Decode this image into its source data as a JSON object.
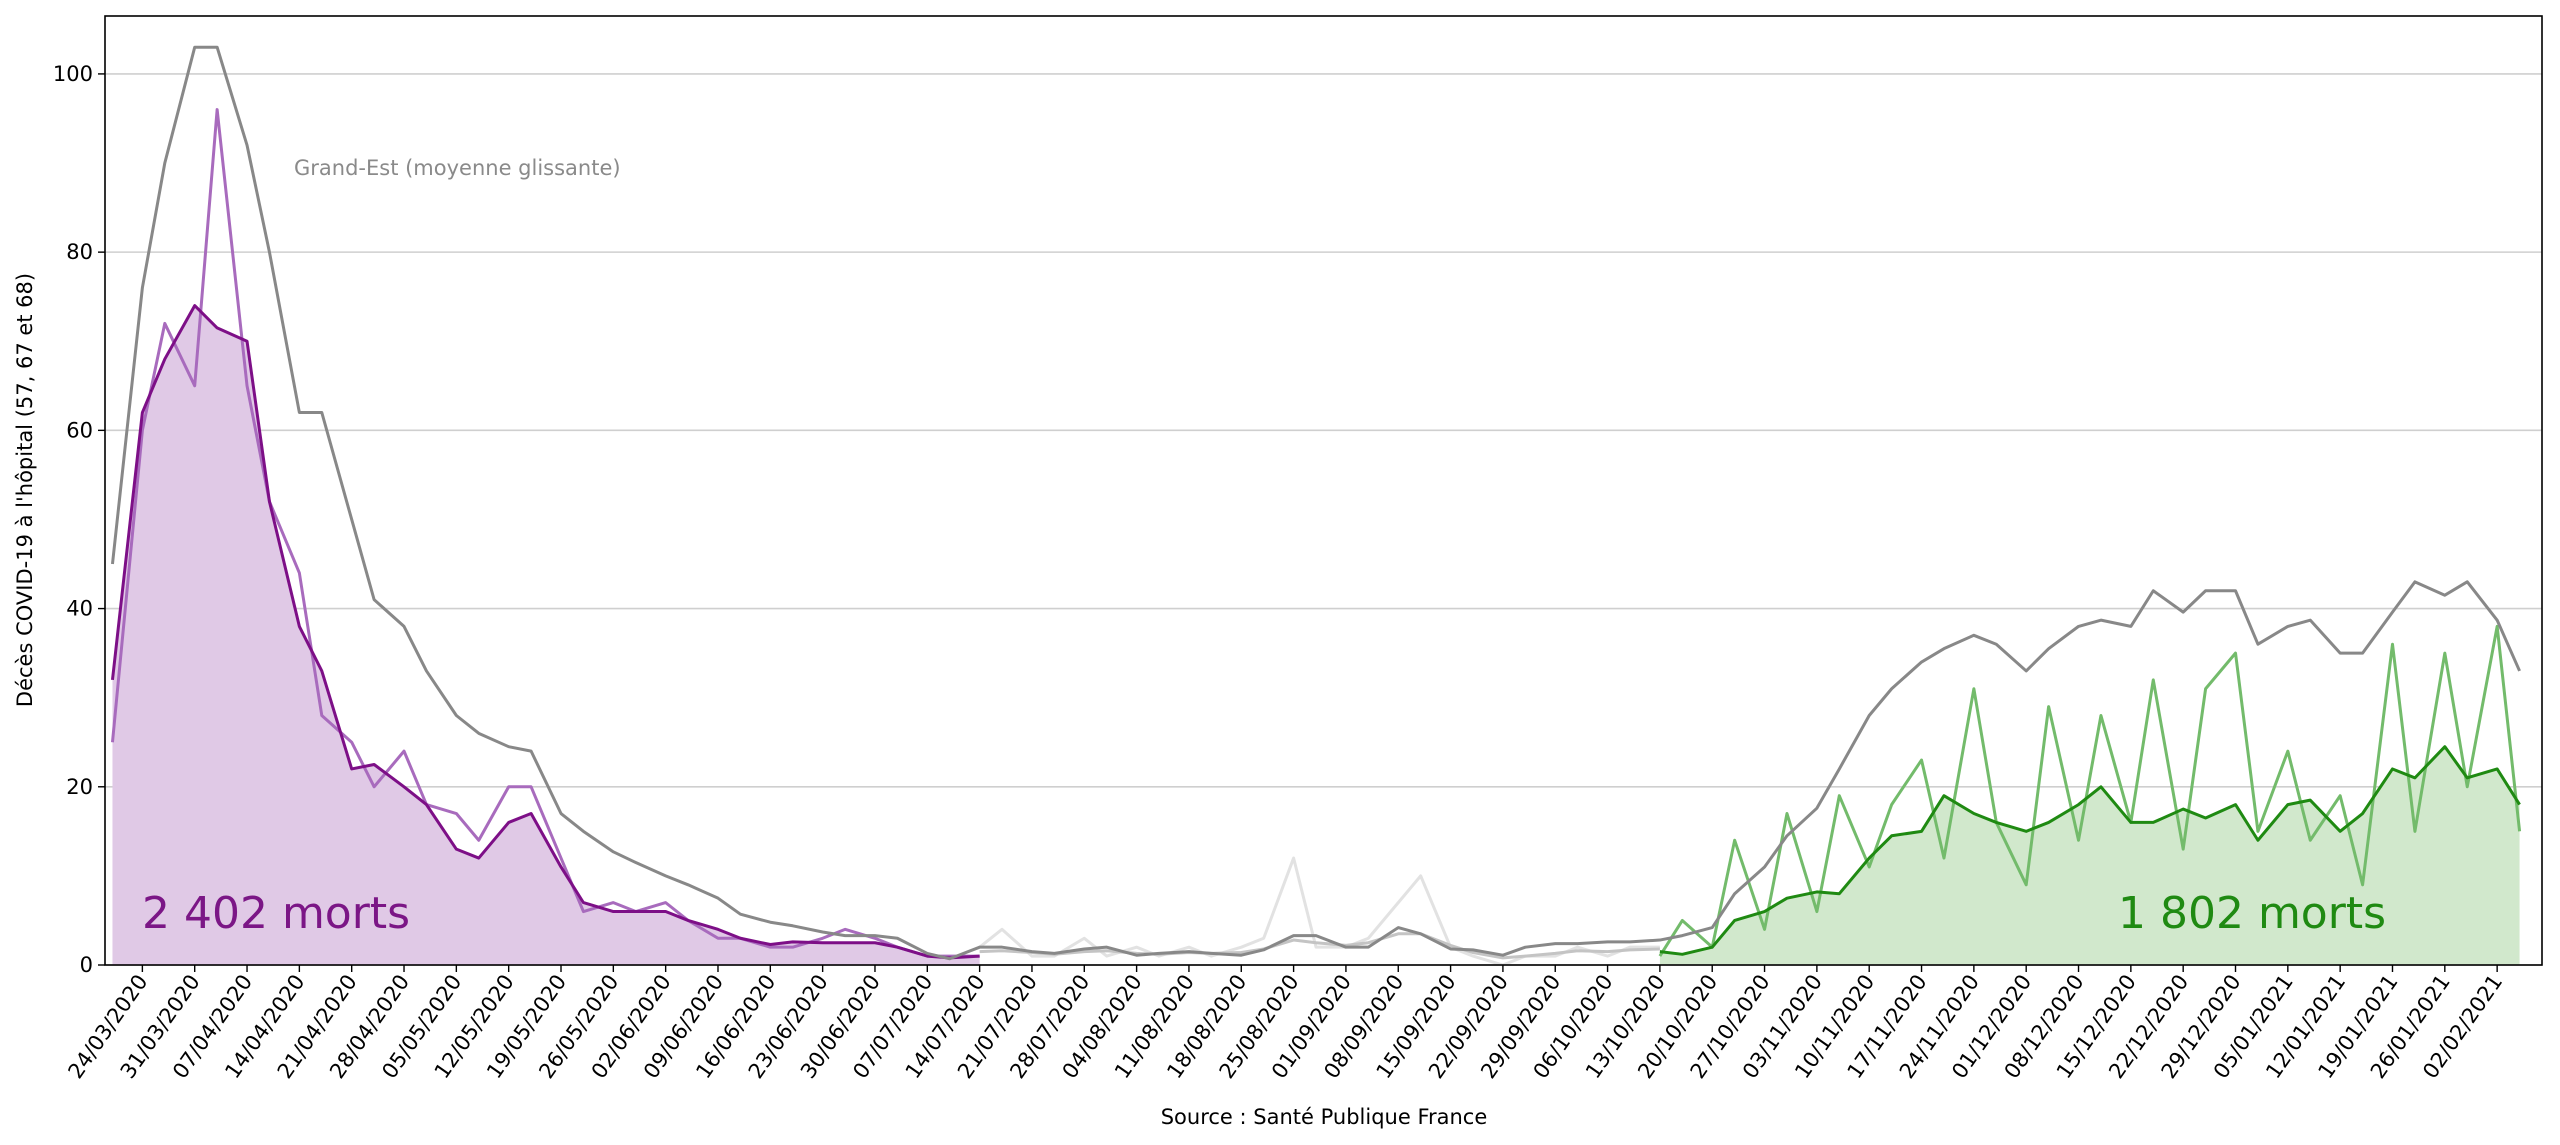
{
  "chart_data": {
    "type": "line",
    "y_label": "Décès COVID-19 à l'hôpital (57, 67 et 68)",
    "x_label": "Source : Santé Publique France",
    "annotations": [
      "Grand-Est (moyenne glissante)",
      "2 402 morts",
      "1 802 morts"
    ],
    "grid": true,
    "xlim": [
      "19/03/2020",
      "08/02/2021"
    ],
    "ylim": [
      0,
      106.5
    ],
    "yticks": [
      0,
      20,
      40,
      60,
      80,
      100
    ],
    "xticks": [
      "24/03/2020",
      "31/03/2020",
      "07/04/2020",
      "14/04/2020",
      "21/04/2020",
      "28/04/2020",
      "05/05/2020",
      "12/05/2020",
      "19/05/2020",
      "26/05/2020",
      "02/06/2020",
      "09/06/2020",
      "16/06/2020",
      "23/06/2020",
      "30/06/2020",
      "07/07/2020",
      "14/07/2020",
      "21/07/2020",
      "28/07/2020",
      "04/08/2020",
      "11/08/2020",
      "18/08/2020",
      "25/08/2020",
      "01/09/2020",
      "08/09/2020",
      "15/09/2020",
      "22/09/2020",
      "29/09/2020",
      "06/10/2020",
      "13/10/2020",
      "20/10/2020",
      "27/10/2020",
      "03/11/2020",
      "10/11/2020",
      "17/11/2020",
      "24/11/2020",
      "01/12/2020",
      "08/12/2020",
      "15/12/2020",
      "22/12/2020",
      "29/12/2020",
      "05/01/2021",
      "12/01/2021",
      "19/01/2021",
      "26/01/2021",
      "02/02/2021"
    ],
    "x": [
      "20/03/2020",
      "24/03/2020",
      "27/03/2020",
      "31/03/2020",
      "03/04/2020",
      "07/04/2020",
      "10/04/2020",
      "14/04/2020",
      "17/04/2020",
      "21/04/2020",
      "24/04/2020",
      "28/04/2020",
      "01/05/2020",
      "05/05/2020",
      "08/05/2020",
      "12/05/2020",
      "15/05/2020",
      "19/05/2020",
      "22/05/2020",
      "26/05/2020",
      "29/05/2020",
      "02/06/2020",
      "05/06/2020",
      "09/06/2020",
      "12/06/2020",
      "16/06/2020",
      "19/06/2020",
      "23/06/2020",
      "26/06/2020",
      "30/06/2020",
      "03/07/2020",
      "07/07/2020",
      "10/07/2020",
      "14/07/2020",
      "17/07/2020",
      "21/07/2020",
      "24/07/2020",
      "28/07/2020",
      "31/07/2020",
      "04/08/2020",
      "07/08/2020",
      "11/08/2020",
      "14/08/2020",
      "18/08/2020",
      "21/08/2020",
      "25/08/2020",
      "28/08/2020",
      "01/09/2020",
      "04/09/2020",
      "08/09/2020",
      "11/09/2020",
      "15/09/2020",
      "18/09/2020",
      "22/09/2020",
      "25/09/2020",
      "29/09/2020",
      "02/10/2020",
      "06/10/2020",
      "09/10/2020",
      "13/10/2020",
      "16/10/2020",
      "20/10/2020",
      "23/10/2020",
      "27/10/2020",
      "30/10/2020",
      "03/11/2020",
      "06/11/2020",
      "10/11/2020",
      "13/11/2020",
      "17/11/2020",
      "20/11/2020",
      "24/11/2020",
      "27/11/2020",
      "01/12/2020",
      "04/12/2020",
      "08/12/2020",
      "11/12/2020",
      "15/12/2020",
      "18/12/2020",
      "22/12/2020",
      "25/12/2020",
      "29/12/2020",
      "01/01/2021",
      "05/01/2021",
      "08/01/2021",
      "12/01/2021",
      "15/01/2021",
      "19/01/2021",
      "22/01/2021",
      "26/01/2021",
      "29/01/2021",
      "02/02/2021",
      "05/02/2021"
    ],
    "series": [
      {
        "color": "#a86bbd",
        "fill": "#e0c9e6",
        "values": [
          32,
          62,
          68,
          74,
          71.5,
          70,
          52,
          38,
          33,
          22,
          22.5,
          20,
          18,
          13,
          12,
          16,
          17,
          11,
          7,
          6,
          6,
          6,
          5,
          4,
          3,
          2.3,
          2.6,
          2.5,
          2.5,
          2.5,
          2,
          1,
          0.8,
          1,
          null,
          null,
          null,
          null,
          null,
          null,
          null,
          null,
          null,
          null,
          null,
          null,
          null,
          null,
          null,
          null,
          null,
          null,
          null,
          null,
          null,
          null,
          null,
          null,
          null,
          null,
          null,
          null,
          null,
          null,
          null,
          null,
          null,
          null,
          null,
          null,
          null,
          null,
          null,
          null,
          null,
          null,
          null,
          null,
          null,
          null,
          null,
          null,
          null,
          null,
          null,
          null,
          null,
          null,
          null,
          null,
          null,
          null,
          null
        ]
      },
      {
        "color": "#a86bbd",
        "values": [
          25,
          60,
          72,
          65,
          96,
          65,
          52,
          44,
          28,
          25,
          20,
          24,
          18,
          17,
          14,
          20,
          20,
          12,
          6,
          7,
          6,
          7,
          5,
          3,
          3,
          2,
          2,
          3,
          4,
          3,
          2,
          1,
          1,
          1,
          null,
          null,
          null,
          null,
          null,
          null,
          null,
          null,
          null,
          null,
          null,
          null,
          null,
          null,
          null,
          null,
          null,
          null,
          null,
          null,
          null,
          null,
          null,
          null,
          null,
          null,
          null,
          null,
          null,
          null,
          null,
          null,
          null,
          null,
          null,
          null,
          null,
          null,
          null,
          null,
          null,
          null,
          null,
          null,
          null,
          null,
          null,
          null,
          null,
          null,
          null,
          null,
          null,
          null,
          null,
          null,
          null,
          null,
          null
        ]
      },
      {
        "color": "#7d0f87",
        "values": [
          32,
          62,
          68,
          74,
          71.5,
          70,
          52,
          38,
          33,
          22,
          22.5,
          20,
          18,
          13,
          12,
          16,
          17,
          11,
          7,
          6,
          6,
          6,
          5,
          4,
          3,
          2.3,
          2.6,
          2.5,
          2.5,
          2.5,
          2,
          1,
          0.8,
          1,
          null,
          null,
          null,
          null,
          null,
          null,
          null,
          null,
          null,
          null,
          null,
          null,
          null,
          null,
          null,
          null,
          null,
          null,
          null,
          null,
          null,
          null,
          null,
          null,
          null,
          null,
          null,
          null,
          null,
          null,
          null,
          null,
          null,
          null,
          null,
          null,
          null,
          null,
          null,
          null,
          null,
          null,
          null,
          null,
          null,
          null,
          null,
          null,
          null,
          null,
          null,
          null,
          null,
          null,
          null,
          null,
          null,
          null,
          null
        ]
      },
      {
        "color": "#e2e2e2",
        "values": [
          null,
          null,
          null,
          null,
          null,
          null,
          null,
          null,
          null,
          null,
          null,
          null,
          null,
          null,
          null,
          null,
          null,
          null,
          null,
          null,
          null,
          null,
          null,
          null,
          null,
          null,
          null,
          null,
          null,
          null,
          null,
          null,
          null,
          2,
          4,
          1,
          1,
          3,
          1,
          2,
          1,
          2,
          1,
          2,
          3,
          12,
          2,
          2,
          3,
          7,
          10,
          2,
          1,
          0,
          1,
          1,
          2,
          1,
          2,
          2,
          null,
          null,
          null,
          null,
          null,
          null,
          null,
          null,
          null,
          null,
          null,
          null,
          null,
          null,
          null,
          null,
          null,
          null,
          null,
          null,
          null,
          null,
          null,
          null,
          null,
          null,
          null,
          null,
          null,
          null,
          null,
          null,
          null
        ]
      },
      {
        "color": "#c4c4c4",
        "values": [
          null,
          null,
          null,
          null,
          null,
          null,
          null,
          null,
          null,
          null,
          null,
          null,
          null,
          null,
          null,
          null,
          null,
          null,
          null,
          null,
          null,
          null,
          null,
          null,
          null,
          null,
          null,
          null,
          null,
          null,
          null,
          null,
          null,
          1.5,
          1.6,
          1.4,
          1.2,
          1.5,
          1.6,
          1.3,
          1.2,
          1.4,
          1.3,
          1.4,
          1.8,
          2.8,
          2.5,
          2.2,
          2.5,
          3.5,
          3.5,
          2.2,
          1.4,
          0.8,
          1.0,
          1.3,
          1.6,
          1.5,
          1.7,
          1.8,
          null,
          null,
          null,
          null,
          null,
          null,
          null,
          null,
          null,
          null,
          null,
          null,
          null,
          null,
          null,
          null,
          null,
          null,
          null,
          null,
          null,
          null,
          null,
          null,
          null,
          null,
          null,
          null,
          null,
          null,
          null,
          null,
          null
        ]
      },
      {
        "color": "#73bb6b",
        "fill": "#d1e8cc",
        "values": [
          null,
          null,
          null,
          null,
          null,
          null,
          null,
          null,
          null,
          null,
          null,
          null,
          null,
          null,
          null,
          null,
          null,
          null,
          null,
          null,
          null,
          null,
          null,
          null,
          null,
          null,
          null,
          null,
          null,
          null,
          null,
          null,
          null,
          null,
          null,
          null,
          null,
          null,
          null,
          null,
          null,
          null,
          null,
          null,
          null,
          null,
          null,
          null,
          null,
          null,
          null,
          null,
          null,
          null,
          null,
          null,
          null,
          null,
          null,
          1.5,
          1.2,
          2,
          5,
          6,
          7.5,
          8.2,
          8,
          12,
          14.5,
          15,
          19,
          17,
          16,
          15,
          16,
          18,
          20,
          16,
          16,
          17.5,
          16.5,
          18,
          14,
          18,
          18.5,
          15,
          17,
          22,
          21,
          24.5,
          21,
          22,
          18
        ]
      },
      {
        "color": "#73bb6b",
        "values": [
          null,
          null,
          null,
          null,
          null,
          null,
          null,
          null,
          null,
          null,
          null,
          null,
          null,
          null,
          null,
          null,
          null,
          null,
          null,
          null,
          null,
          null,
          null,
          null,
          null,
          null,
          null,
          null,
          null,
          null,
          null,
          null,
          null,
          null,
          null,
          null,
          null,
          null,
          null,
          null,
          null,
          null,
          null,
          null,
          null,
          null,
          null,
          null,
          null,
          null,
          null,
          null,
          null,
          null,
          null,
          null,
          null,
          null,
          null,
          1,
          5,
          2,
          14,
          4,
          17,
          6,
          19,
          11,
          18,
          23,
          12,
          31,
          16,
          9,
          29,
          14,
          28,
          16,
          32,
          13,
          31,
          35,
          15,
          24,
          14,
          19,
          9,
          36,
          15,
          35,
          20,
          38,
          15
        ]
      },
      {
        "color": "#1f8a12",
        "values": [
          null,
          null,
          null,
          null,
          null,
          null,
          null,
          null,
          null,
          null,
          null,
          null,
          null,
          null,
          null,
          null,
          null,
          null,
          null,
          null,
          null,
          null,
          null,
          null,
          null,
          null,
          null,
          null,
          null,
          null,
          null,
          null,
          null,
          null,
          null,
          null,
          null,
          null,
          null,
          null,
          null,
          null,
          null,
          null,
          null,
          null,
          null,
          null,
          null,
          null,
          null,
          null,
          null,
          null,
          null,
          null,
          null,
          null,
          null,
          1.5,
          1.2,
          2,
          5,
          6,
          7.5,
          8.2,
          8,
          12,
          14.5,
          15,
          19,
          17,
          16,
          15,
          16,
          18,
          20,
          16,
          16,
          17.5,
          16.5,
          18,
          14,
          18,
          18.5,
          15,
          17,
          22,
          21,
          24.5,
          21,
          22,
          18
        ]
      },
      {
        "color": "#888888",
        "values": [
          45,
          76,
          90,
          103,
          103,
          92,
          80,
          62,
          62,
          50,
          41,
          38,
          33,
          28,
          26,
          24.5,
          24,
          17,
          15,
          12.7,
          11.5,
          10,
          9,
          7.5,
          5.7,
          4.8,
          4.4,
          3.7,
          3.3,
          3.3,
          3,
          1.3,
          0.7,
          2,
          2,
          1.5,
          1.3,
          1.8,
          2,
          1.1,
          1.3,
          1.5,
          1.3,
          1.1,
          1.7,
          3.3,
          3.3,
          2,
          2,
          4.2,
          3.5,
          1.8,
          1.7,
          1.1,
          2,
          2.4,
          2.4,
          2.6,
          2.6,
          2.8,
          3.3,
          4.2,
          8,
          11,
          14.5,
          17.6,
          22,
          28,
          31,
          34,
          35.5,
          37,
          36,
          33,
          35.5,
          38,
          38.7,
          38,
          42,
          39.6,
          42,
          42,
          36,
          38,
          38.7,
          35,
          35,
          39.6,
          43,
          41.5,
          43,
          38.7,
          33
        ]
      }
    ]
  }
}
